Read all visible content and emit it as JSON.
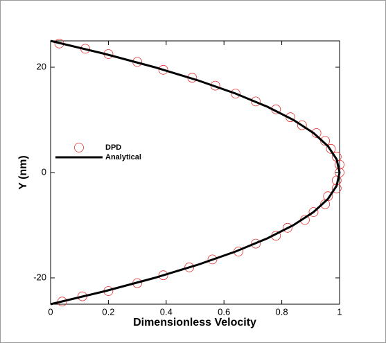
{
  "chart_data": {
    "type": "scatter-line",
    "xlabel": "Dimensionless Velocity",
    "ylabel": "Y (nm)",
    "xlim": [
      0,
      1
    ],
    "ylim": [
      -25,
      25
    ],
    "xticks": [
      0,
      0.2,
      0.4,
      0.6,
      0.8,
      1
    ],
    "yticks": [
      -20,
      0,
      20
    ],
    "legend": "left",
    "series": [
      {
        "name": "DPD",
        "type": "scatter",
        "color": "#e03030",
        "x": [
          0.03,
          0.12,
          0.2,
          0.3,
          0.39,
          0.49,
          0.57,
          0.64,
          0.71,
          0.78,
          0.83,
          0.87,
          0.92,
          0.95,
          0.97,
          0.99,
          1.0,
          1.0,
          0.99,
          0.99,
          0.96,
          0.95,
          0.91,
          0.88,
          0.82,
          0.78,
          0.71,
          0.65,
          0.56,
          0.48,
          0.39,
          0.3,
          0.2,
          0.11,
          0.04
        ],
        "y": [
          24.5,
          23.5,
          22.5,
          21,
          19.5,
          18,
          16.5,
          15,
          13.5,
          12,
          10.5,
          9,
          7.5,
          6,
          4.5,
          3,
          1.5,
          0,
          -1.5,
          -3,
          -4.5,
          -6,
          -7.5,
          -9,
          -10.5,
          -12,
          -13.5,
          -15,
          -16.5,
          -18,
          -19.5,
          -21,
          -22.5,
          -23.5,
          -24.5
        ]
      },
      {
        "name": "Analytical",
        "type": "line",
        "color": "#000000",
        "x": [
          0,
          0.19,
          0.36,
          0.51,
          0.64,
          0.75,
          0.84,
          0.91,
          0.96,
          0.99,
          1,
          0.99,
          0.96,
          0.91,
          0.84,
          0.75,
          0.64,
          0.51,
          0.36,
          0.19,
          0
        ],
        "y": [
          25,
          22.5,
          20,
          17.5,
          15,
          12.5,
          10,
          7.5,
          5,
          2.5,
          0,
          -2.5,
          -5,
          -7.5,
          -10,
          -12.5,
          -15,
          -17.5,
          -20,
          -22.5,
          -25
        ]
      }
    ]
  }
}
